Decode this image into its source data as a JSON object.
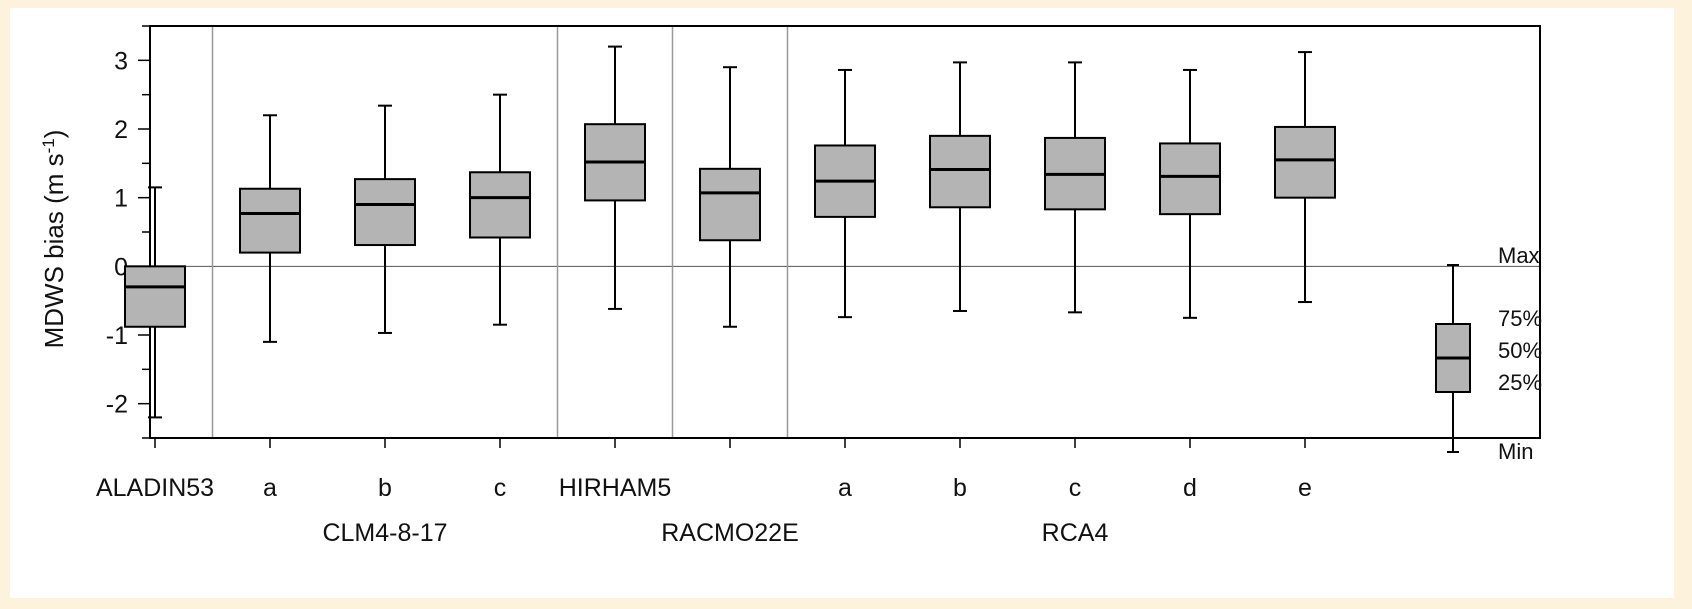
{
  "colors": {
    "page_background": "#fdf3dc",
    "panel_background": "#ffffff",
    "box_fill": "#b4b4b4",
    "stroke": "#000000",
    "divider": "#999999"
  },
  "chart_data": {
    "type": "boxplot",
    "ylabel": "MDWS bias (m s-1)",
    "ylabel_parts": {
      "main": "MDWS bias (m s",
      "sup": "-1",
      "close": ")"
    },
    "ylim": [
      -2.5,
      3.5
    ],
    "yticks": [
      -2,
      -1,
      0,
      1,
      2,
      3
    ],
    "reference_line_y": 0,
    "grid": false,
    "groups": [
      {
        "name": "",
        "categories": [
          "ALADIN53"
        ]
      },
      {
        "name": "CLM4-8-17",
        "categories": [
          "a",
          "b",
          "c"
        ]
      },
      {
        "name": "",
        "categories": [
          "HIRHAM5"
        ]
      },
      {
        "name": "RACMO22E",
        "categories": [
          ""
        ]
      },
      {
        "name": "RCA4",
        "categories": [
          "a",
          "b",
          "c",
          "d",
          "e"
        ]
      }
    ],
    "boxes": [
      {
        "label": "ALADIN53",
        "min": -2.2,
        "q1": -0.88,
        "median": -0.3,
        "q3": 0.0,
        "max": 1.15
      },
      {
        "label": "a",
        "min": -1.1,
        "q1": 0.2,
        "median": 0.77,
        "q3": 1.13,
        "max": 2.2
      },
      {
        "label": "b",
        "min": -0.97,
        "q1": 0.31,
        "median": 0.9,
        "q3": 1.27,
        "max": 2.34
      },
      {
        "label": "c",
        "min": -0.85,
        "q1": 0.42,
        "median": 1.0,
        "q3": 1.37,
        "max": 2.5
      },
      {
        "label": "HIRHAM5",
        "min": -0.62,
        "q1": 0.96,
        "median": 1.52,
        "q3": 2.07,
        "max": 3.2
      },
      {
        "label": "",
        "min": -0.88,
        "q1": 0.38,
        "median": 1.07,
        "q3": 1.42,
        "max": 2.9
      },
      {
        "label": "a",
        "min": -0.74,
        "q1": 0.72,
        "median": 1.24,
        "q3": 1.76,
        "max": 2.86
      },
      {
        "label": "b",
        "min": -0.65,
        "q1": 0.86,
        "median": 1.41,
        "q3": 1.9,
        "max": 2.97
      },
      {
        "label": "c",
        "min": -0.67,
        "q1": 0.83,
        "median": 1.34,
        "q3": 1.87,
        "max": 2.97
      },
      {
        "label": "d",
        "min": -0.75,
        "q1": 0.76,
        "median": 1.31,
        "q3": 1.79,
        "max": 2.86
      },
      {
        "label": "e",
        "min": -0.52,
        "q1": 1.0,
        "median": 1.55,
        "q3": 2.03,
        "max": 3.12
      }
    ],
    "legend": {
      "placement": "right",
      "labels": {
        "max": "Max",
        "q3": "75%",
        "median": "50%",
        "q1": "25%",
        "min": "Min"
      }
    }
  }
}
